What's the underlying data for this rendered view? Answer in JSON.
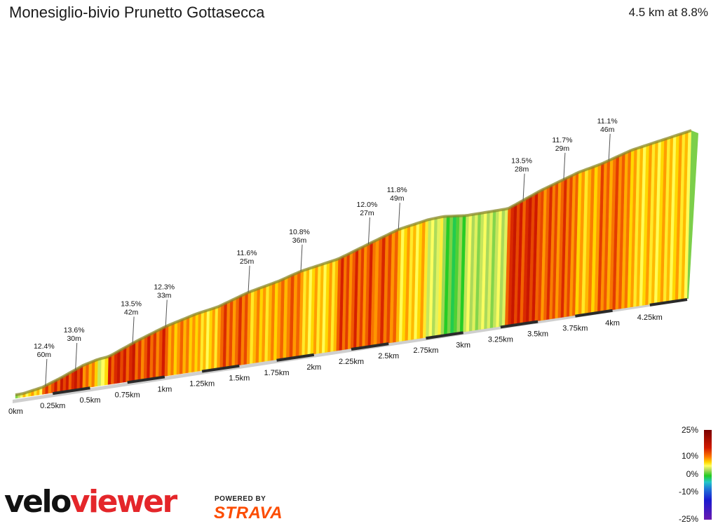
{
  "header": {
    "title": "Monesiglio-bivio Prunetto Gottasecca",
    "summary": "4.5 km at 8.8%"
  },
  "chart_data": {
    "type": "area",
    "title": "Monesiglio-bivio Prunetto Gottasecca",
    "subtitle": "4.5 km at 8.8%",
    "distance_km": 4.5,
    "average_gradient_pct": 8.8,
    "x_tick_labels": [
      "0km",
      "0.25km",
      "0.5km",
      "0.75km",
      "1km",
      "1.25km",
      "1.5km",
      "1.75km",
      "2km",
      "2.25km",
      "2.5km",
      "2.75km",
      "3km",
      "3.25km",
      "3.5km",
      "3.75km",
      "4km",
      "4.25km"
    ],
    "x_ticks_km": [
      0,
      0.25,
      0.5,
      0.75,
      1,
      1.25,
      1.5,
      1.75,
      2,
      2.25,
      2.5,
      2.75,
      3,
      3.25,
      3.5,
      3.75,
      4,
      4.25
    ],
    "gradient_segments": [
      {
        "from_km": 0.0,
        "to_km": 0.05,
        "grade": 4
      },
      {
        "from_km": 0.05,
        "to_km": 0.18,
        "grade": 8
      },
      {
        "from_km": 0.18,
        "to_km": 0.3,
        "grade": 12.4
      },
      {
        "from_km": 0.3,
        "to_km": 0.45,
        "grade": 13.6
      },
      {
        "from_km": 0.45,
        "to_km": 0.55,
        "grade": 10
      },
      {
        "from_km": 0.55,
        "to_km": 0.62,
        "grade": 6
      },
      {
        "from_km": 0.62,
        "to_km": 0.8,
        "grade": 13.5
      },
      {
        "from_km": 0.8,
        "to_km": 1.0,
        "grade": 12.3
      },
      {
        "from_km": 1.0,
        "to_km": 1.2,
        "grade": 10
      },
      {
        "from_km": 1.2,
        "to_km": 1.35,
        "grade": 8
      },
      {
        "from_km": 1.35,
        "to_km": 1.55,
        "grade": 11.6
      },
      {
        "from_km": 1.55,
        "to_km": 1.75,
        "grade": 9
      },
      {
        "from_km": 1.75,
        "to_km": 1.9,
        "grade": 10.8
      },
      {
        "from_km": 1.9,
        "to_km": 2.15,
        "grade": 8
      },
      {
        "from_km": 2.15,
        "to_km": 2.4,
        "grade": 12.0
      },
      {
        "from_km": 2.4,
        "to_km": 2.55,
        "grade": 11.8
      },
      {
        "from_km": 2.55,
        "to_km": 2.75,
        "grade": 8
      },
      {
        "from_km": 2.75,
        "to_km": 2.85,
        "grade": 5
      },
      {
        "from_km": 2.85,
        "to_km": 3.0,
        "grade": 1
      },
      {
        "from_km": 3.0,
        "to_km": 3.28,
        "grade": 4
      },
      {
        "from_km": 3.28,
        "to_km": 3.5,
        "grade": 13.5
      },
      {
        "from_km": 3.5,
        "to_km": 3.75,
        "grade": 11.7
      },
      {
        "from_km": 3.75,
        "to_km": 3.9,
        "grade": 9
      },
      {
        "from_km": 3.9,
        "to_km": 4.1,
        "grade": 11.1
      },
      {
        "from_km": 4.1,
        "to_km": 4.5,
        "grade": 8
      }
    ],
    "annotations": [
      {
        "km": 0.2,
        "grade": "12.4%",
        "length": "60m"
      },
      {
        "km": 0.4,
        "grade": "13.6%",
        "length": "30m"
      },
      {
        "km": 0.78,
        "grade": "13.5%",
        "length": "42m"
      },
      {
        "km": 1.0,
        "grade": "12.3%",
        "length": "33m"
      },
      {
        "km": 1.55,
        "grade": "11.6%",
        "length": "25m"
      },
      {
        "km": 1.9,
        "grade": "10.8%",
        "length": "36m"
      },
      {
        "km": 2.35,
        "grade": "12.0%",
        "length": "27m"
      },
      {
        "km": 2.55,
        "grade": "11.8%",
        "length": "49m"
      },
      {
        "km": 3.38,
        "grade": "13.5%",
        "length": "28m"
      },
      {
        "km": 3.65,
        "grade": "11.7%",
        "length": "29m"
      },
      {
        "km": 3.95,
        "grade": "11.1%",
        "length": "46m"
      }
    ],
    "legend": {
      "labels": [
        "25%",
        "10%",
        "0%",
        "-10%",
        "-25%"
      ],
      "colors": [
        "#7a0000",
        "#ffd800",
        "#22cc22",
        "#1f74d8",
        "#6a1ab0"
      ]
    }
  },
  "branding": {
    "logo_part1": "velo",
    "logo_part2": "viewer",
    "powered_by": "POWERED BY",
    "strava": "STRAVA"
  }
}
